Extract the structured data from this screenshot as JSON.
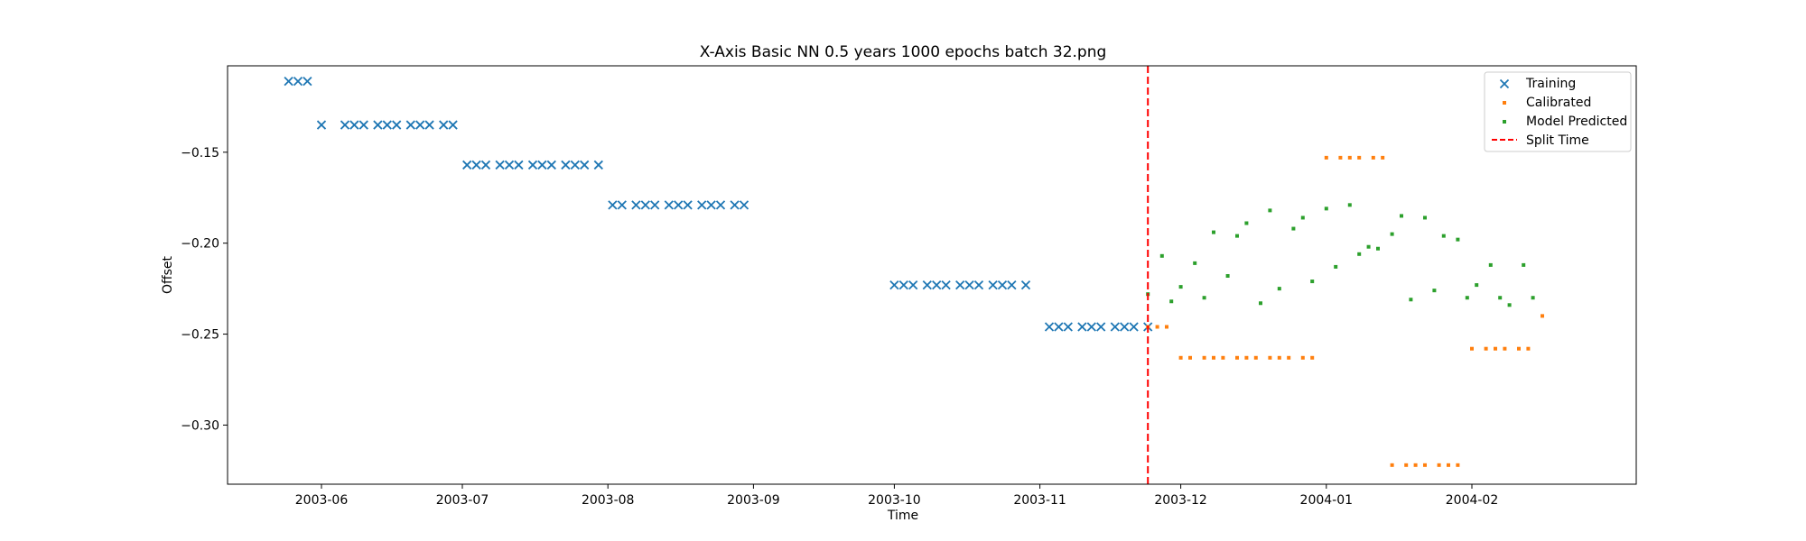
{
  "chart_data": {
    "type": "scatter",
    "title": "X-Axis Basic NN 0.5 years 1000 epochs batch 32.png",
    "xlabel": "Time",
    "ylabel": "Offset",
    "x_axis_type": "date",
    "xlim": [
      "2003-05-12",
      "2004-03-07"
    ],
    "ylim": [
      -0.3325,
      -0.1025
    ],
    "x_ticks": [
      "2003-06",
      "2003-07",
      "2003-08",
      "2003-09",
      "2003-10",
      "2003-11",
      "2003-12",
      "2004-01",
      "2004-02"
    ],
    "x_tick_dates": [
      "2003-06-01",
      "2003-07-01",
      "2003-08-01",
      "2003-09-01",
      "2003-10-01",
      "2003-11-01",
      "2003-12-01",
      "2004-01-01",
      "2004-02-01"
    ],
    "y_ticks": [
      -0.15,
      -0.2,
      -0.25,
      -0.3
    ],
    "y_tick_labels": [
      "−0.15",
      "−0.20",
      "−0.25",
      "−0.30"
    ],
    "grid": false,
    "legend_position": "top-right",
    "series": [
      {
        "name": "Training",
        "marker": "x",
        "color": "#1f77b4",
        "points": [
          [
            "2003-05-25",
            -0.111
          ],
          [
            "2003-05-27",
            -0.111
          ],
          [
            "2003-05-29",
            -0.111
          ],
          [
            "2003-06-01",
            -0.135
          ],
          [
            "2003-06-06",
            -0.135
          ],
          [
            "2003-06-08",
            -0.135
          ],
          [
            "2003-06-10",
            -0.135
          ],
          [
            "2003-06-13",
            -0.135
          ],
          [
            "2003-06-15",
            -0.135
          ],
          [
            "2003-06-17",
            -0.135
          ],
          [
            "2003-06-20",
            -0.135
          ],
          [
            "2003-06-22",
            -0.135
          ],
          [
            "2003-06-24",
            -0.135
          ],
          [
            "2003-06-27",
            -0.135
          ],
          [
            "2003-06-29",
            -0.135
          ],
          [
            "2003-07-02",
            -0.157
          ],
          [
            "2003-07-04",
            -0.157
          ],
          [
            "2003-07-06",
            -0.157
          ],
          [
            "2003-07-09",
            -0.157
          ],
          [
            "2003-07-11",
            -0.157
          ],
          [
            "2003-07-13",
            -0.157
          ],
          [
            "2003-07-16",
            -0.157
          ],
          [
            "2003-07-18",
            -0.157
          ],
          [
            "2003-07-20",
            -0.157
          ],
          [
            "2003-07-23",
            -0.157
          ],
          [
            "2003-07-25",
            -0.157
          ],
          [
            "2003-07-27",
            -0.157
          ],
          [
            "2003-07-30",
            -0.157
          ],
          [
            "2003-08-02",
            -0.179
          ],
          [
            "2003-08-04",
            -0.179
          ],
          [
            "2003-08-07",
            -0.179
          ],
          [
            "2003-08-09",
            -0.179
          ],
          [
            "2003-08-11",
            -0.179
          ],
          [
            "2003-08-14",
            -0.179
          ],
          [
            "2003-08-16",
            -0.179
          ],
          [
            "2003-08-18",
            -0.179
          ],
          [
            "2003-08-21",
            -0.179
          ],
          [
            "2003-08-23",
            -0.179
          ],
          [
            "2003-08-25",
            -0.179
          ],
          [
            "2003-08-28",
            -0.179
          ],
          [
            "2003-08-30",
            -0.179
          ],
          [
            "2003-10-01",
            -0.223
          ],
          [
            "2003-10-03",
            -0.223
          ],
          [
            "2003-10-05",
            -0.223
          ],
          [
            "2003-10-08",
            -0.223
          ],
          [
            "2003-10-10",
            -0.223
          ],
          [
            "2003-10-12",
            -0.223
          ],
          [
            "2003-10-15",
            -0.223
          ],
          [
            "2003-10-17",
            -0.223
          ],
          [
            "2003-10-19",
            -0.223
          ],
          [
            "2003-10-22",
            -0.223
          ],
          [
            "2003-10-24",
            -0.223
          ],
          [
            "2003-10-26",
            -0.223
          ],
          [
            "2003-10-29",
            -0.223
          ],
          [
            "2003-11-03",
            -0.246
          ],
          [
            "2003-11-05",
            -0.246
          ],
          [
            "2003-11-07",
            -0.246
          ],
          [
            "2003-11-10",
            -0.246
          ],
          [
            "2003-11-12",
            -0.246
          ],
          [
            "2003-11-14",
            -0.246
          ],
          [
            "2003-11-17",
            -0.246
          ],
          [
            "2003-11-19",
            -0.246
          ],
          [
            "2003-11-21",
            -0.246
          ],
          [
            "2003-11-24",
            -0.246
          ]
        ]
      },
      {
        "name": "Calibrated",
        "marker": "dot",
        "color": "#ff7f0e",
        "points": [
          [
            "2003-11-24",
            -0.246
          ],
          [
            "2003-11-26",
            -0.246
          ],
          [
            "2003-11-28",
            -0.246
          ],
          [
            "2003-12-01",
            -0.263
          ],
          [
            "2003-12-03",
            -0.263
          ],
          [
            "2003-12-06",
            -0.263
          ],
          [
            "2003-12-08",
            -0.263
          ],
          [
            "2003-12-10",
            -0.263
          ],
          [
            "2003-12-13",
            -0.263
          ],
          [
            "2003-12-15",
            -0.263
          ],
          [
            "2003-12-17",
            -0.263
          ],
          [
            "2003-12-20",
            -0.263
          ],
          [
            "2003-12-22",
            -0.263
          ],
          [
            "2003-12-24",
            -0.263
          ],
          [
            "2003-12-27",
            -0.263
          ],
          [
            "2003-12-29",
            -0.263
          ],
          [
            "2004-01-01",
            -0.153
          ],
          [
            "2004-01-04",
            -0.153
          ],
          [
            "2004-01-06",
            -0.153
          ],
          [
            "2004-01-08",
            -0.153
          ],
          [
            "2004-01-11",
            -0.153
          ],
          [
            "2004-01-13",
            -0.153
          ],
          [
            "2004-01-15",
            -0.322
          ],
          [
            "2004-01-18",
            -0.322
          ],
          [
            "2004-01-20",
            -0.322
          ],
          [
            "2004-01-22",
            -0.322
          ],
          [
            "2004-01-25",
            -0.322
          ],
          [
            "2004-01-27",
            -0.322
          ],
          [
            "2004-01-29",
            -0.322
          ],
          [
            "2004-02-01",
            -0.258
          ],
          [
            "2004-02-04",
            -0.258
          ],
          [
            "2004-02-06",
            -0.258
          ],
          [
            "2004-02-08",
            -0.258
          ],
          [
            "2004-02-11",
            -0.258
          ],
          [
            "2004-02-13",
            -0.258
          ],
          [
            "2004-02-16",
            -0.24
          ]
        ]
      },
      {
        "name": "Model Predicted",
        "marker": "dot",
        "color": "#2ca02c",
        "points": [
          [
            "2003-11-24",
            -0.228
          ],
          [
            "2003-11-27",
            -0.207
          ],
          [
            "2003-11-29",
            -0.232
          ],
          [
            "2003-12-01",
            -0.224
          ],
          [
            "2003-12-04",
            -0.211
          ],
          [
            "2003-12-06",
            -0.23
          ],
          [
            "2003-12-08",
            -0.194
          ],
          [
            "2003-12-11",
            -0.218
          ],
          [
            "2003-12-13",
            -0.196
          ],
          [
            "2003-12-15",
            -0.189
          ],
          [
            "2003-12-18",
            -0.233
          ],
          [
            "2003-12-20",
            -0.182
          ],
          [
            "2003-12-22",
            -0.225
          ],
          [
            "2003-12-25",
            -0.192
          ],
          [
            "2003-12-27",
            -0.186
          ],
          [
            "2003-12-29",
            -0.221
          ],
          [
            "2004-01-01",
            -0.181
          ],
          [
            "2004-01-03",
            -0.213
          ],
          [
            "2004-01-06",
            -0.179
          ],
          [
            "2004-01-08",
            -0.206
          ],
          [
            "2004-01-10",
            -0.202
          ],
          [
            "2004-01-12",
            -0.203
          ],
          [
            "2004-01-15",
            -0.195
          ],
          [
            "2004-01-17",
            -0.185
          ],
          [
            "2004-01-19",
            -0.231
          ],
          [
            "2004-01-22",
            -0.186
          ],
          [
            "2004-01-24",
            -0.226
          ],
          [
            "2004-01-26",
            -0.196
          ],
          [
            "2004-01-29",
            -0.198
          ],
          [
            "2004-01-31",
            -0.23
          ],
          [
            "2004-02-02",
            -0.223
          ],
          [
            "2004-02-05",
            -0.212
          ],
          [
            "2004-02-07",
            -0.23
          ],
          [
            "2004-02-09",
            -0.234
          ],
          [
            "2004-02-12",
            -0.212
          ],
          [
            "2004-02-14",
            -0.23
          ]
        ]
      }
    ],
    "vlines": [
      {
        "name": "Split Time",
        "x": "2003-11-24",
        "color": "#ff0000",
        "style": "dashed"
      }
    ]
  }
}
